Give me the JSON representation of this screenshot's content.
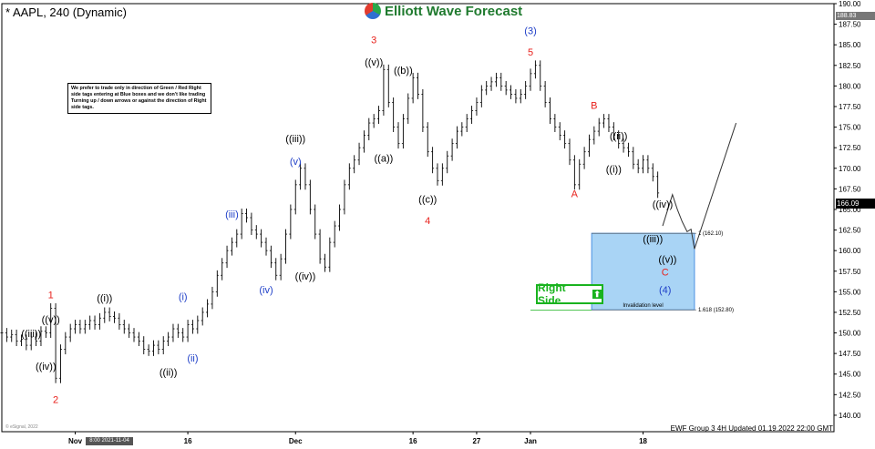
{
  "header": {
    "title": "* AAPL, 240 (Dynamic)",
    "brand": "Elliott Wave Forecast"
  },
  "note": "We prefer to trade only in direction of Green / Red Right side tags entering at Blue boxes and we don't like trading Turning up / down arrows or against the direction of Right side tags.",
  "right_side_label": "Right Side",
  "right_side_arrow": "⬆",
  "footer": "EWF Group 3 4H Updated 01.19.2022 22:00 GMT",
  "copyright": "© eSignal, 2022",
  "x_cursor_label": "8:00 2021-11-04",
  "last_price": "166.09",
  "top_price_badge": "188.83",
  "colors": {
    "candle": "#000000",
    "wave_red": "#e8221d",
    "wave_blue": "#1f3fc8",
    "wave_black": "#000000",
    "box_fill": "#a9d4f5",
    "box_border": "#4a90e2",
    "right_side_green": "#19b31e"
  },
  "chart_data": {
    "type": "line",
    "title": "* AAPL, 240 (Dynamic)",
    "xlabel": "",
    "ylabel": "",
    "ylim": [
      138,
      190
    ],
    "y_ticks": [
      140.0,
      142.5,
      145.0,
      147.5,
      150.0,
      152.5,
      155.0,
      157.5,
      160.0,
      162.5,
      165.0,
      167.5,
      170.0,
      172.5,
      175.0,
      177.5,
      180.0,
      182.5,
      185.0,
      187.5,
      190.0
    ],
    "x_ticks": [
      {
        "label": "Nov",
        "x": 15
      },
      {
        "label": "16",
        "x": 38
      },
      {
        "label": "Dec",
        "x": 60
      },
      {
        "label": "16",
        "x": 84
      },
      {
        "label": "27",
        "x": 97
      },
      {
        "label": "Jan",
        "x": 108
      },
      {
        "label": "18",
        "x": 131
      }
    ],
    "x_domain": [
      0,
      170
    ],
    "series": [
      {
        "points": [
          [
            0,
            150
          ],
          [
            1,
            149.5
          ],
          [
            2,
            149.8
          ],
          [
            3,
            149
          ],
          [
            4,
            149.2
          ],
          [
            5,
            148.5
          ],
          [
            6,
            149.5
          ],
          [
            7,
            149
          ],
          [
            8,
            150.2
          ],
          [
            9,
            150
          ],
          [
            10,
            153
          ],
          [
            11,
            144.5
          ],
          [
            12,
            148
          ],
          [
            13,
            149.5
          ],
          [
            14,
            150.5
          ],
          [
            15,
            151
          ],
          [
            16,
            150.5
          ],
          [
            17,
            151
          ],
          [
            18,
            151.5
          ],
          [
            19,
            151
          ],
          [
            20,
            151.8
          ],
          [
            21,
            152.5
          ],
          [
            22,
            152
          ],
          [
            23,
            151.8
          ],
          [
            24,
            151
          ],
          [
            25,
            150.5
          ],
          [
            26,
            150
          ],
          [
            27,
            149.5
          ],
          [
            28,
            149
          ],
          [
            29,
            148
          ],
          [
            30,
            147.8
          ],
          [
            31,
            148.5
          ],
          [
            32,
            148
          ],
          [
            33,
            149
          ],
          [
            34,
            149.5
          ],
          [
            35,
            150.5
          ],
          [
            36,
            150
          ],
          [
            37,
            149.5
          ],
          [
            38,
            151
          ],
          [
            39,
            150.5
          ],
          [
            40,
            151.5
          ],
          [
            41,
            152.5
          ],
          [
            42,
            153.5
          ],
          [
            43,
            155
          ],
          [
            44,
            157
          ],
          [
            45,
            158.5
          ],
          [
            46,
            160
          ],
          [
            47,
            161
          ],
          [
            48,
            162
          ],
          [
            49,
            164.5
          ],
          [
            50,
            164
          ],
          [
            51,
            162.5
          ],
          [
            52,
            162
          ],
          [
            53,
            161
          ],
          [
            54,
            160
          ],
          [
            55,
            158.5
          ],
          [
            56,
            157
          ],
          [
            57,
            159
          ],
          [
            58,
            162
          ],
          [
            59,
            165
          ],
          [
            60,
            168
          ],
          [
            61,
            170
          ],
          [
            62,
            168
          ],
          [
            63,
            165
          ],
          [
            64,
            162
          ],
          [
            65,
            159
          ],
          [
            66,
            158
          ],
          [
            67,
            161
          ],
          [
            68,
            163
          ],
          [
            69,
            165
          ],
          [
            70,
            168
          ],
          [
            71,
            170
          ],
          [
            72,
            171
          ],
          [
            73,
            172.5
          ],
          [
            74,
            174
          ],
          [
            75,
            175.5
          ],
          [
            76,
            176
          ],
          [
            77,
            177
          ],
          [
            78,
            182
          ],
          [
            79,
            178
          ],
          [
            80,
            175
          ],
          [
            81,
            173
          ],
          [
            82,
            176
          ],
          [
            83,
            178.5
          ],
          [
            84,
            181
          ],
          [
            85,
            179
          ],
          [
            86,
            175
          ],
          [
            87,
            172
          ],
          [
            88,
            170
          ],
          [
            89,
            168.5
          ],
          [
            90,
            170
          ],
          [
            91,
            171.5
          ],
          [
            92,
            173
          ],
          [
            93,
            174.5
          ],
          [
            94,
            175
          ],
          [
            95,
            176
          ],
          [
            96,
            177
          ],
          [
            97,
            178
          ],
          [
            98,
            179.5
          ],
          [
            99,
            180
          ],
          [
            100,
            180.5
          ],
          [
            101,
            181
          ],
          [
            102,
            180
          ],
          [
            103,
            179.5
          ],
          [
            104,
            179
          ],
          [
            105,
            178.5
          ],
          [
            106,
            179
          ],
          [
            107,
            180
          ],
          [
            108,
            181.5
          ],
          [
            109,
            182.5
          ],
          [
            110,
            180
          ],
          [
            111,
            178
          ],
          [
            112,
            176
          ],
          [
            113,
            175
          ],
          [
            114,
            174
          ],
          [
            115,
            173
          ],
          [
            116,
            171
          ],
          [
            117,
            168
          ],
          [
            118,
            170.5
          ],
          [
            119,
            172
          ],
          [
            120,
            173.5
          ],
          [
            121,
            174.5
          ],
          [
            122,
            175.5
          ],
          [
            123,
            176
          ],
          [
            124,
            175
          ],
          [
            125,
            174
          ],
          [
            126,
            173
          ],
          [
            127,
            172.5
          ],
          [
            128,
            172
          ],
          [
            129,
            170.5
          ],
          [
            130,
            170
          ],
          [
            131,
            171
          ],
          [
            132,
            170
          ],
          [
            133,
            169
          ],
          [
            134,
            167
          ]
        ]
      }
    ],
    "projection": [
      [
        135,
        163
      ],
      [
        137,
        166.8
      ],
      [
        138,
        165
      ],
      [
        139,
        163.5
      ],
      [
        140,
        162.3
      ],
      [
        140.8,
        162.6
      ],
      [
        141.5,
        160.2
      ],
      [
        150,
        175.5
      ]
    ],
    "blue_box": {
      "x0": 120.5,
      "x1": 141.5,
      "y0": 152.8,
      "y1": 162.1,
      "label": "Invalidation level"
    },
    "fib_levels": [
      {
        "label": "1 (162.10)",
        "y": 162.1
      },
      {
        "label": "1.618 (152.80)",
        "y": 152.8
      }
    ],
    "level_text": "152.78",
    "wave_labels": [
      {
        "text": "1",
        "x": 10,
        "y": 154.2,
        "color": "#e8221d"
      },
      {
        "text": "((v))",
        "x": 10,
        "y": 151.2,
        "color": "#000000"
      },
      {
        "text": "((iii))",
        "x": 6,
        "y": 149.5,
        "color": "#000000"
      },
      {
        "text": "((iv))",
        "x": 9,
        "y": 145.5,
        "color": "#000000"
      },
      {
        "text": "2",
        "x": 11,
        "y": 141.5,
        "color": "#e8221d"
      },
      {
        "text": "((i))",
        "x": 21,
        "y": 153.8,
        "color": "#000000"
      },
      {
        "text": "((ii))",
        "x": 34,
        "y": 144.8,
        "color": "#000000"
      },
      {
        "text": "(i)",
        "x": 37,
        "y": 154,
        "color": "#1f3fc8"
      },
      {
        "text": "(ii)",
        "x": 39,
        "y": 146.5,
        "color": "#1f3fc8"
      },
      {
        "text": "(iii)",
        "x": 47,
        "y": 164,
        "color": "#1f3fc8"
      },
      {
        "text": "(iv)",
        "x": 54,
        "y": 154.8,
        "color": "#1f3fc8"
      },
      {
        "text": "((iii))",
        "x": 60,
        "y": 173.2,
        "color": "#000000"
      },
      {
        "text": "(v)",
        "x": 60,
        "y": 170.4,
        "color": "#1f3fc8"
      },
      {
        "text": "((iv))",
        "x": 62,
        "y": 156.5,
        "color": "#000000"
      },
      {
        "text": "3",
        "x": 76,
        "y": 185.2,
        "color": "#e8221d"
      },
      {
        "text": "((v))",
        "x": 76,
        "y": 182.5,
        "color": "#000000"
      },
      {
        "text": "((a))",
        "x": 78,
        "y": 170.8,
        "color": "#000000"
      },
      {
        "text": "((b))",
        "x": 82,
        "y": 181.5,
        "color": "#000000"
      },
      {
        "text": "((c))",
        "x": 87,
        "y": 165.8,
        "color": "#000000"
      },
      {
        "text": "4",
        "x": 87,
        "y": 163.2,
        "color": "#e8221d"
      },
      {
        "text": "(3)",
        "x": 108,
        "y": 186.3,
        "color": "#1f3fc8"
      },
      {
        "text": "5",
        "x": 108,
        "y": 183.7,
        "color": "#e8221d"
      },
      {
        "text": "A",
        "x": 117,
        "y": 166.5,
        "color": "#e8221d"
      },
      {
        "text": "B",
        "x": 121,
        "y": 177.2,
        "color": "#e8221d"
      },
      {
        "text": "((ii))",
        "x": 126,
        "y": 173.5,
        "color": "#000000"
      },
      {
        "text": "((i))",
        "x": 125,
        "y": 169.5,
        "color": "#000000"
      },
      {
        "text": "((iv))",
        "x": 135,
        "y": 165.2,
        "color": "#000000"
      },
      {
        "text": "((iii))",
        "x": 133,
        "y": 161,
        "color": "#000000"
      },
      {
        "text": "((v))",
        "x": 136,
        "y": 158.5,
        "color": "#000000"
      },
      {
        "text": "C",
        "x": 135.5,
        "y": 157,
        "color": "#e8221d"
      },
      {
        "text": "(4)",
        "x": 135.5,
        "y": 154.8,
        "color": "#1f3fc8"
      }
    ]
  }
}
